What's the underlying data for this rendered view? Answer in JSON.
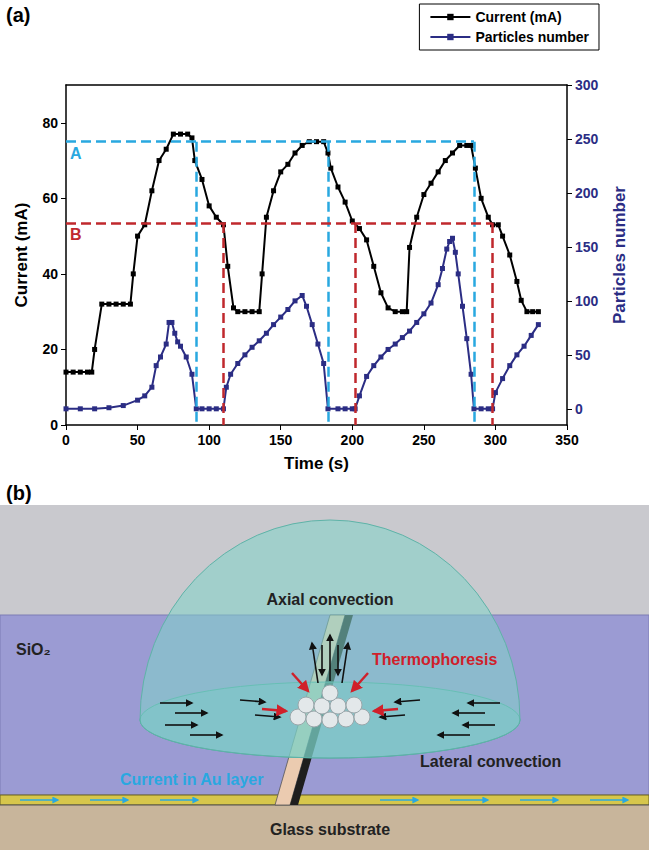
{
  "chart_data": {
    "type": "line",
    "xlabel": "Time (s)",
    "ylabel": "Current (mA)",
    "y2label": "Particles number",
    "xlim": [
      0,
      350
    ],
    "xticks": [
      0,
      50,
      100,
      150,
      200,
      250,
      300,
      350
    ],
    "ylim": [
      0,
      90
    ],
    "yticks": [
      0,
      20,
      40,
      60,
      80
    ],
    "y2lim": [
      -15,
      300
    ],
    "y2ticks": [
      0,
      50,
      100,
      150,
      200,
      250,
      300
    ],
    "grid": false,
    "legend": "top right",
    "series": [
      {
        "name": "Current (mA)",
        "color": "#000000",
        "marker": "square",
        "line_style": "solid",
        "x": [
          0,
          5,
          10,
          15,
          18,
          20,
          25,
          30,
          35,
          40,
          45,
          47,
          50,
          55,
          60,
          65,
          70,
          75,
          80,
          85,
          88,
          90,
          95,
          100,
          105,
          110,
          113,
          117,
          120,
          125,
          130,
          135,
          137,
          140,
          145,
          150,
          155,
          160,
          165,
          170,
          175,
          180,
          183,
          185,
          190,
          195,
          200,
          205,
          210,
          215,
          220,
          225,
          230,
          235,
          238,
          240,
          245,
          250,
          255,
          260,
          265,
          270,
          275,
          280,
          283,
          286,
          290,
          295,
          298,
          302,
          305,
          310,
          315,
          318,
          322,
          326,
          330
        ],
        "values": [
          14,
          14,
          14,
          14,
          14,
          20,
          32,
          32,
          32,
          32,
          32,
          40,
          50,
          53,
          62,
          70,
          73,
          77,
          77,
          77,
          76,
          70,
          65,
          58,
          55,
          53,
          42,
          31,
          30,
          30,
          30,
          30,
          40,
          55,
          62,
          67,
          69,
          72,
          74,
          75,
          75,
          75,
          72,
          68,
          63,
          59,
          54,
          52,
          49,
          42,
          35,
          31,
          30,
          30,
          30,
          47,
          55,
          61,
          64,
          67,
          70,
          72,
          74,
          74,
          74,
          68,
          60,
          55,
          53,
          53,
          50,
          45,
          38,
          33,
          30,
          30,
          30
        ]
      },
      {
        "name": "Particles number",
        "color": "#2b2d84",
        "marker": "square",
        "line_style": "solid",
        "axis": "y2",
        "x": [
          0,
          10,
          20,
          30,
          40,
          50,
          55,
          60,
          63,
          66,
          70,
          72,
          74,
          76,
          78,
          80,
          84,
          88,
          91,
          95,
          100,
          105,
          110,
          112,
          115,
          120,
          125,
          130,
          135,
          140,
          145,
          150,
          155,
          160,
          165,
          168,
          172,
          176,
          180,
          183,
          190,
          195,
          200,
          202,
          205,
          210,
          215,
          220,
          225,
          230,
          235,
          240,
          245,
          250,
          255,
          260,
          263,
          266,
          268,
          270,
          272,
          274,
          277,
          280,
          283,
          285,
          290,
          295,
          298,
          300,
          305,
          310,
          315,
          320,
          325,
          330
        ],
        "values": [
          0,
          0,
          0,
          1,
          3,
          8,
          12,
          20,
          40,
          48,
          60,
          80,
          80,
          70,
          62,
          58,
          48,
          32,
          0,
          0,
          0,
          0,
          0,
          20,
          32,
          42,
          50,
          57,
          63,
          70,
          78,
          85,
          92,
          100,
          105,
          95,
          78,
          60,
          42,
          0,
          0,
          0,
          0,
          0,
          12,
          30,
          40,
          48,
          55,
          60,
          66,
          72,
          80,
          88,
          98,
          115,
          130,
          148,
          155,
          158,
          145,
          125,
          95,
          65,
          32,
          0,
          0,
          0,
          0,
          15,
          28,
          40,
          50,
          58,
          68,
          78
        ]
      }
    ],
    "annotations": [
      {
        "label": "A",
        "color": "#29a8e0",
        "y": 75,
        "x_start": 0,
        "x_drop": [
          91,
          183,
          285
        ]
      },
      {
        "label": "B",
        "color": "#c0282d",
        "y": 53.5,
        "x_start": 0,
        "x_drop": [
          110,
          202,
          298
        ]
      }
    ]
  },
  "figure": {
    "panel_labels": [
      "(a)",
      "(b)"
    ],
    "diagram": {
      "axial": "Axial convection",
      "thermophoresis": "Thermophoresis",
      "oxide": "SiO₂",
      "lateral": "Lateral convection",
      "current": "Current in Au layer",
      "substrate": "Glass substrate"
    }
  }
}
